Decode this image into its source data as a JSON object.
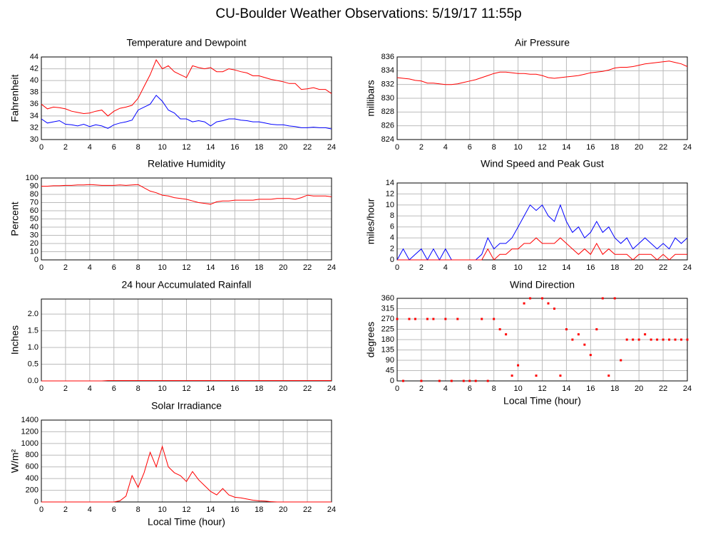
{
  "title": "CU-Boulder Weather Observations: 5/19/17 11:55p",
  "chart_data": [
    {
      "type": "line",
      "title": "Temperature and Dewpoint",
      "ylabel": "Fahrenheit",
      "x": [
        0,
        0.5,
        1,
        1.5,
        2,
        2.5,
        3,
        3.5,
        4,
        4.5,
        5,
        5.5,
        6,
        6.5,
        7,
        7.5,
        8,
        8.5,
        9,
        9.5,
        10,
        10.5,
        11,
        11.5,
        12,
        12.5,
        13,
        13.5,
        14,
        14.5,
        15,
        15.5,
        16,
        16.5,
        17,
        17.5,
        18,
        18.5,
        19,
        19.5,
        20,
        20.5,
        21,
        21.5,
        22,
        22.5,
        23,
        23.5,
        24
      ],
      "series": [
        {
          "color": "#ff0000",
          "values": [
            36,
            35.2,
            35.5,
            35.4,
            35.2,
            34.8,
            34.6,
            34.4,
            34.5,
            34.8,
            35,
            34,
            34.8,
            35.3,
            35.5,
            35.8,
            37,
            39,
            41,
            43.5,
            42,
            42.5,
            41.5,
            41,
            40.5,
            42.5,
            42.2,
            42,
            42.2,
            41.5,
            41.5,
            42,
            41.8,
            41.5,
            41.3,
            40.8,
            40.8,
            40.5,
            40.2,
            40,
            39.8,
            39.5,
            39.5,
            38.5,
            38.6,
            38.8,
            38.5,
            38.5,
            37.8
          ]
        },
        {
          "color": "#0000ff",
          "values": [
            33.5,
            32.8,
            33,
            33.2,
            32.6,
            32.5,
            32.3,
            32.6,
            32.2,
            32.5,
            32.3,
            31.9,
            32.5,
            32.8,
            33,
            33.3,
            35,
            35.5,
            36,
            37.5,
            36.5,
            35,
            34.5,
            33.5,
            33.5,
            33,
            33.2,
            33,
            32.3,
            33,
            33.2,
            33.5,
            33.5,
            33.3,
            33.2,
            33,
            33,
            32.8,
            32.6,
            32.5,
            32.5,
            32.3,
            32.2,
            32,
            32,
            32.1,
            32,
            32,
            31.8
          ]
        }
      ],
      "xlim": [
        0,
        24
      ],
      "xticks": [
        0,
        2,
        4,
        6,
        8,
        10,
        12,
        14,
        16,
        18,
        20,
        22,
        24
      ],
      "ylim": [
        30,
        44
      ],
      "yticks": [
        30,
        32,
        34,
        36,
        38,
        40,
        42,
        44
      ],
      "grid": true
    },
    {
      "type": "line",
      "title": "Air Pressure",
      "ylabel": "millibars",
      "x": [
        0,
        0.5,
        1,
        1.5,
        2,
        2.5,
        3,
        3.5,
        4,
        4.5,
        5,
        5.5,
        6,
        6.5,
        7,
        7.5,
        8,
        8.5,
        9,
        9.5,
        10,
        10.5,
        11,
        11.5,
        12,
        12.5,
        13,
        13.5,
        14,
        14.5,
        15,
        15.5,
        16,
        16.5,
        17,
        17.5,
        18,
        18.5,
        19,
        19.5,
        20,
        20.5,
        21,
        21.5,
        22,
        22.5,
        23,
        23.5,
        24
      ],
      "series": [
        {
          "color": "#ff0000",
          "values": [
            833,
            832.9,
            832.8,
            832.6,
            832.5,
            832.2,
            832.2,
            832.1,
            832,
            832,
            832.1,
            832.3,
            832.5,
            832.7,
            833,
            833.3,
            833.6,
            833.8,
            833.8,
            833.7,
            833.6,
            833.6,
            833.5,
            833.5,
            833.3,
            833,
            832.9,
            833,
            833.1,
            833.2,
            833.3,
            833.5,
            833.7,
            833.8,
            833.9,
            834.1,
            834.4,
            834.5,
            834.5,
            834.6,
            834.8,
            835,
            835.1,
            835.2,
            835.3,
            835.4,
            835.2,
            835,
            834.6
          ]
        }
      ],
      "xlim": [
        0,
        24
      ],
      "xticks": [
        0,
        2,
        4,
        6,
        8,
        10,
        12,
        14,
        16,
        18,
        20,
        22,
        24
      ],
      "ylim": [
        824,
        836
      ],
      "yticks": [
        824,
        826,
        828,
        830,
        832,
        834,
        836
      ],
      "grid": true
    },
    {
      "type": "line",
      "title": "Relative Humidity",
      "ylabel": "Percent",
      "x": [
        0,
        0.5,
        1,
        1.5,
        2,
        2.5,
        3,
        3.5,
        4,
        4.5,
        5,
        5.5,
        6,
        6.5,
        7,
        7.5,
        8,
        8.5,
        9,
        9.5,
        10,
        10.5,
        11,
        11.5,
        12,
        12.5,
        13,
        13.5,
        14,
        14.5,
        15,
        15.5,
        16,
        16.5,
        17,
        17.5,
        18,
        18.5,
        19,
        19.5,
        20,
        20.5,
        21,
        21.5,
        22,
        22.5,
        23,
        23.5,
        24
      ],
      "series": [
        {
          "color": "#ff0000",
          "values": [
            90,
            90,
            90.5,
            90.5,
            91,
            91,
            91.5,
            91.5,
            92,
            91.5,
            91,
            91,
            91,
            91.5,
            91,
            91.5,
            92,
            88,
            84,
            82,
            79,
            78,
            76,
            75,
            74,
            72,
            70,
            69,
            68,
            71,
            72,
            72,
            73,
            73,
            73,
            73,
            74,
            74,
            74,
            75,
            75,
            75,
            74,
            76,
            79,
            78,
            78,
            78,
            77
          ]
        }
      ],
      "xlim": [
        0,
        24
      ],
      "xticks": [
        0,
        2,
        4,
        6,
        8,
        10,
        12,
        14,
        16,
        18,
        20,
        22,
        24
      ],
      "ylim": [
        0,
        100
      ],
      "yticks": [
        0,
        10,
        20,
        30,
        40,
        50,
        60,
        70,
        80,
        90,
        100
      ],
      "grid": true
    },
    {
      "type": "line",
      "title": "Wind Speed and Peak Gust",
      "ylabel": "miles/hour",
      "x": [
        0,
        0.5,
        1,
        1.5,
        2,
        2.5,
        3,
        3.5,
        4,
        4.5,
        5,
        5.5,
        6,
        6.5,
        7,
        7.5,
        8,
        8.5,
        9,
        9.5,
        10,
        10.5,
        11,
        11.5,
        12,
        12.5,
        13,
        13.5,
        14,
        14.5,
        15,
        15.5,
        16,
        16.5,
        17,
        17.5,
        18,
        18.5,
        19,
        19.5,
        20,
        20.5,
        21,
        21.5,
        22,
        22.5,
        23,
        23.5,
        24
      ],
      "series": [
        {
          "color": "#0000ff",
          "values": [
            0,
            2,
            0,
            1,
            2,
            0,
            2,
            0,
            2,
            0,
            0,
            0,
            0,
            0,
            1,
            4,
            2,
            3,
            3,
            4,
            6,
            8,
            10,
            9,
            10,
            8,
            7,
            10,
            7,
            5,
            6,
            4,
            5,
            7,
            5,
            6,
            4,
            3,
            4,
            2,
            3,
            4,
            3,
            2,
            3,
            2,
            4,
            3,
            4
          ]
        },
        {
          "color": "#ff0000",
          "values": [
            0,
            0,
            0,
            0,
            0,
            0,
            0,
            0,
            0,
            0,
            0,
            0,
            0,
            0,
            0,
            2,
            0,
            1,
            1,
            2,
            2,
            3,
            3,
            4,
            3,
            3,
            3,
            4,
            3,
            2,
            1,
            2,
            1,
            3,
            1,
            2,
            1,
            1,
            1,
            0,
            1,
            1,
            1,
            0,
            1,
            0,
            1,
            1,
            1
          ]
        }
      ],
      "xlim": [
        0,
        24
      ],
      "xticks": [
        0,
        2,
        4,
        6,
        8,
        10,
        12,
        14,
        16,
        18,
        20,
        22,
        24
      ],
      "ylim": [
        0,
        14
      ],
      "yticks": [
        0,
        2,
        4,
        6,
        8,
        10,
        12,
        14
      ],
      "grid": true
    },
    {
      "type": "line",
      "title": "24 hour Accumulated Rainfall",
      "ylabel": "Inches",
      "x": [
        0,
        0.5,
        1,
        1.5,
        2,
        2.5,
        3,
        3.5,
        4,
        4.5,
        5,
        5.5,
        6,
        6.5,
        7,
        7.5,
        8,
        8.5,
        9,
        9.5,
        10,
        10.5,
        11,
        11.5,
        12,
        12.5,
        13,
        13.5,
        14,
        14.5,
        15,
        15.5,
        16,
        16.5,
        17,
        17.5,
        18,
        18.5,
        19,
        19.5,
        20,
        20.5,
        21,
        21.5,
        22,
        22.5,
        23,
        23.5,
        24
      ],
      "series": [
        {
          "color": "#ff0000",
          "values": [
            0,
            0,
            0,
            0,
            0,
            0,
            0,
            0,
            0,
            0,
            0,
            0.01,
            0.01,
            0.01,
            0.01,
            0.01,
            0.01,
            0.01,
            0.01,
            0.01,
            0.01,
            0.01,
            0.01,
            0.01,
            0.01,
            0.01,
            0.01,
            0.01,
            0.01,
            0.01,
            0.01,
            0.01,
            0.01,
            0.01,
            0.01,
            0.01,
            0.01,
            0.01,
            0.01,
            0.01,
            0.01,
            0.01,
            0.01,
            0.01,
            0.01,
            0.01,
            0.01,
            0.01,
            0.01
          ]
        }
      ],
      "xlim": [
        0,
        24
      ],
      "xticks": [
        0,
        2,
        4,
        6,
        8,
        10,
        12,
        14,
        16,
        18,
        20,
        22,
        24
      ],
      "ylim": [
        0,
        2.45
      ],
      "yticks": [
        {
          "value": 0,
          "label": "0.0"
        },
        {
          "value": 0.5,
          "label": "0.5"
        },
        {
          "value": 1,
          "label": "1.0"
        },
        {
          "value": 1.5,
          "label": "1.5"
        },
        {
          "value": 2,
          "label": "2.0"
        }
      ],
      "grid": true
    },
    {
      "type": "scatter",
      "title": "Wind Direction",
      "ylabel": "degrees",
      "xlabel": "Local Time (hour)",
      "x": [
        0,
        0.5,
        1,
        1.5,
        2,
        2.5,
        3,
        3.5,
        4,
        4.5,
        5,
        5.5,
        6,
        6.5,
        7,
        7.5,
        8,
        8.5,
        9,
        9.5,
        10,
        10.5,
        11,
        11.5,
        12,
        12.5,
        13,
        13.5,
        14,
        14.5,
        15,
        15.5,
        16,
        16.5,
        17,
        17.5,
        18,
        18.5,
        19,
        19.5,
        20,
        20.5,
        21,
        21.5,
        22,
        22.5,
        23,
        23.5,
        24
      ],
      "series": [
        {
          "color": "#ff0000",
          "values": [
            270,
            0,
            270,
            270,
            0,
            270,
            270,
            0,
            270,
            0,
            270,
            0,
            0,
            0,
            270,
            0,
            270,
            225,
            203,
            23,
            68,
            338,
            360,
            23,
            360,
            338,
            315,
            23,
            225,
            180,
            203,
            158,
            113,
            225,
            360,
            23,
            360,
            90,
            180,
            180,
            180,
            203,
            180,
            180,
            180,
            180,
            180,
            180,
            180
          ]
        }
      ],
      "xlim": [
        0,
        24
      ],
      "xticks": [
        0,
        2,
        4,
        6,
        8,
        10,
        12,
        14,
        16,
        18,
        20,
        22,
        24
      ],
      "ylim": [
        0,
        360
      ],
      "yticks": [
        0,
        45,
        90,
        135,
        180,
        225,
        270,
        315,
        360
      ],
      "grid": true
    },
    {
      "type": "line",
      "title": "Solar Irradiance",
      "ylabel": "W/m²",
      "xlabel": "Local Time (hour)",
      "x": [
        0,
        0.5,
        1,
        1.5,
        2,
        2.5,
        3,
        3.5,
        4,
        4.5,
        5,
        5.5,
        6,
        6.5,
        7,
        7.5,
        8,
        8.5,
        9,
        9.5,
        10,
        10.5,
        11,
        11.5,
        12,
        12.5,
        13,
        13.5,
        14,
        14.5,
        15,
        15.5,
        16,
        16.5,
        17,
        17.5,
        18,
        18.5,
        19,
        19.5,
        20,
        20.5,
        21,
        21.5,
        22,
        22.5,
        23,
        23.5,
        24
      ],
      "series": [
        {
          "color": "#ff0000",
          "values": [
            0,
            0,
            0,
            0,
            0,
            0,
            0,
            0,
            0,
            0,
            0,
            0,
            0,
            20,
            100,
            450,
            250,
            500,
            850,
            600,
            950,
            600,
            500,
            450,
            350,
            520,
            380,
            280,
            180,
            120,
            230,
            120,
            80,
            70,
            50,
            30,
            20,
            15,
            5,
            0,
            0,
            0,
            0,
            0,
            0,
            0,
            0,
            0,
            0
          ]
        }
      ],
      "xlim": [
        0,
        24
      ],
      "xticks": [
        0,
        2,
        4,
        6,
        8,
        10,
        12,
        14,
        16,
        18,
        20,
        22,
        24
      ],
      "ylim": [
        0,
        1400
      ],
      "yticks": [
        0,
        200,
        400,
        600,
        800,
        1000,
        1200,
        1400
      ],
      "grid": true
    }
  ]
}
